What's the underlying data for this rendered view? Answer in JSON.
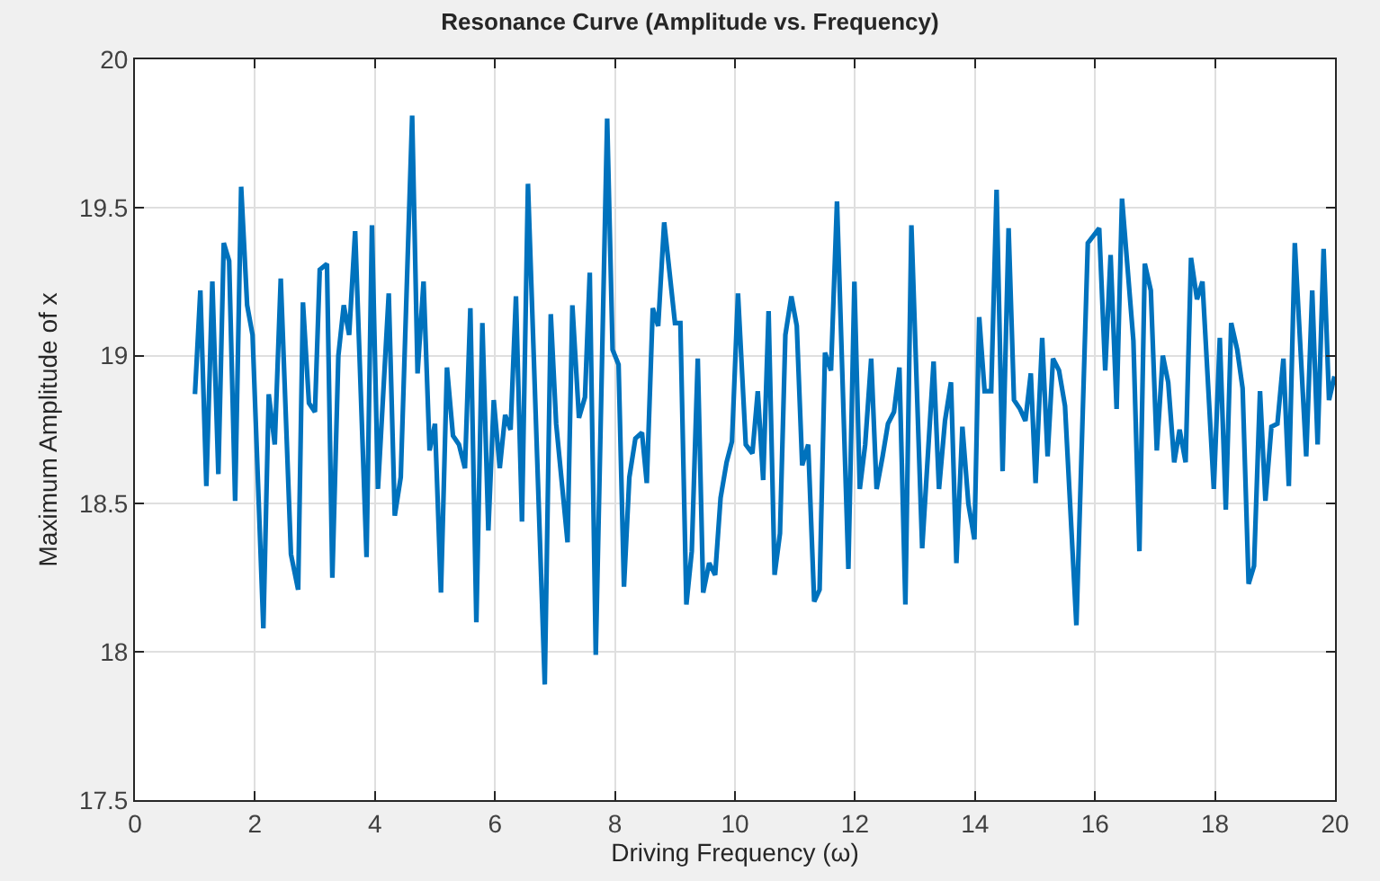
{
  "chart_data": {
    "type": "line",
    "title": "Resonance Curve (Amplitude vs. Frequency)",
    "xlabel": "Driving Frequency (ω)",
    "ylabel": "Maximum Amplitude of x",
    "x": [
      1.0,
      1.09,
      1.19,
      1.29,
      1.39,
      1.48,
      1.57,
      1.67,
      1.77,
      1.87,
      1.96,
      2.14,
      2.23,
      2.33,
      2.43,
      2.6,
      2.72,
      2.8,
      2.9,
      3.0,
      3.08,
      3.2,
      3.29,
      3.39,
      3.48,
      3.57,
      3.67,
      3.86,
      3.95,
      4.05,
      4.23,
      4.33,
      4.43,
      4.62,
      4.71,
      4.81,
      4.91,
      5.0,
      5.1,
      5.2,
      5.3,
      5.4,
      5.5,
      5.59,
      5.69,
      5.79,
      5.89,
      5.98,
      6.08,
      6.17,
      6.26,
      6.35,
      6.45,
      6.55,
      6.83,
      6.93,
      7.02,
      7.21,
      7.29,
      7.4,
      7.5,
      7.58,
      7.68,
      7.87,
      7.96,
      8.06,
      8.15,
      8.24,
      8.34,
      8.45,
      8.53,
      8.63,
      8.72,
      8.82,
      9.0,
      9.09,
      9.19,
      9.28,
      9.38,
      9.47,
      9.57,
      9.67,
      9.76,
      9.86,
      9.95,
      10.05,
      10.18,
      10.29,
      10.38,
      10.47,
      10.56,
      10.66,
      10.75,
      10.84,
      10.94,
      11.03,
      11.12,
      11.22,
      11.32,
      11.41,
      11.5,
      11.6,
      11.7,
      11.89,
      11.99,
      12.08,
      12.17,
      12.27,
      12.36,
      12.46,
      12.55,
      12.65,
      12.74,
      12.84,
      12.94,
      13.12,
      13.31,
      13.4,
      13.5,
      13.6,
      13.69,
      13.79,
      13.89,
      13.99,
      14.07,
      14.16,
      14.27,
      14.36,
      14.46,
      14.56,
      14.65,
      14.75,
      14.84,
      14.93,
      15.01,
      15.12,
      15.21,
      15.3,
      15.4,
      15.5,
      15.69,
      15.88,
      16.07,
      16.17,
      16.26,
      16.36,
      16.45,
      16.64,
      16.74,
      16.83,
      16.93,
      17.03,
      17.13,
      17.22,
      17.32,
      17.41,
      17.51,
      17.6,
      17.7,
      17.79,
      17.98,
      18.08,
      18.18,
      18.27,
      18.37,
      18.46,
      18.56,
      18.65,
      18.75,
      18.84,
      18.94,
      19.04,
      19.14,
      19.23,
      19.33,
      19.52,
      19.62,
      19.71,
      19.81,
      19.9,
      19.99
    ],
    "series": [
      {
        "color": "#0072bd",
        "values": [
          18.87,
          19.22,
          18.56,
          19.25,
          18.6,
          19.38,
          19.32,
          18.51,
          19.57,
          19.17,
          19.07,
          18.08,
          18.87,
          18.7,
          19.26,
          18.33,
          18.21,
          19.18,
          18.84,
          18.81,
          19.29,
          19.31,
          18.25,
          19.0,
          19.17,
          19.07,
          19.42,
          18.32,
          19.44,
          18.55,
          19.21,
          18.46,
          18.59,
          19.81,
          18.94,
          19.25,
          18.68,
          18.77,
          18.2,
          18.96,
          18.73,
          18.7,
          18.62,
          19.16,
          18.1,
          19.11,
          18.41,
          18.85,
          18.62,
          18.8,
          18.75,
          19.2,
          18.44,
          19.58,
          17.89,
          19.14,
          18.77,
          18.37,
          19.17,
          18.79,
          18.86,
          19.28,
          17.99,
          19.8,
          19.02,
          18.97,
          18.22,
          18.59,
          18.72,
          18.74,
          18.57,
          19.16,
          19.1,
          19.45,
          19.11,
          19.11,
          18.16,
          18.34,
          18.99,
          18.2,
          18.3,
          18.26,
          18.52,
          18.64,
          18.71,
          19.21,
          18.7,
          18.67,
          18.88,
          18.58,
          19.15,
          18.26,
          18.4,
          19.07,
          19.2,
          19.1,
          18.63,
          18.7,
          18.17,
          18.21,
          19.01,
          18.95,
          19.52,
          18.28,
          19.25,
          18.55,
          18.7,
          18.99,
          18.55,
          18.66,
          18.77,
          18.81,
          18.96,
          18.16,
          19.44,
          18.35,
          18.98,
          18.55,
          18.78,
          18.91,
          18.3,
          18.76,
          18.5,
          18.38,
          19.13,
          18.88,
          18.88,
          19.56,
          18.61,
          19.43,
          18.85,
          18.82,
          18.78,
          18.94,
          18.57,
          19.06,
          18.66,
          18.99,
          18.95,
          18.83,
          18.09,
          19.38,
          19.43,
          18.95,
          19.34,
          18.82,
          19.53,
          19.05,
          18.34,
          19.31,
          19.22,
          18.68,
          19.0,
          18.91,
          18.64,
          18.75,
          18.64,
          19.33,
          19.19,
          19.25,
          18.55,
          19.06,
          18.48,
          19.11,
          19.02,
          18.89,
          18.23,
          18.29,
          18.88,
          18.51,
          18.76,
          18.77,
          18.99,
          18.56,
          19.38,
          18.66,
          19.22,
          18.7,
          19.36,
          18.85,
          18.93
        ]
      }
    ],
    "xlim": [
      0,
      20
    ],
    "xticks": [
      0,
      2,
      4,
      6,
      8,
      10,
      12,
      14,
      16,
      18,
      20
    ],
    "ylim": [
      17.5,
      20
    ],
    "yticks": [
      17.5,
      18,
      18.5,
      19,
      19.5,
      20
    ],
    "grid": true,
    "line_style": "solid",
    "marker": "none"
  }
}
